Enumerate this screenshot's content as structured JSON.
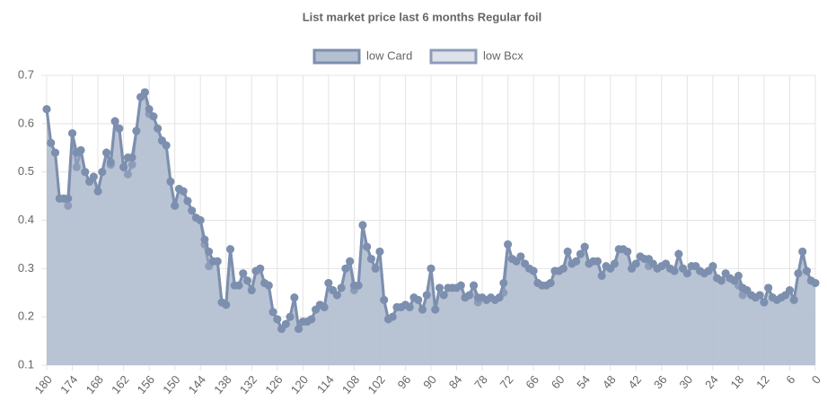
{
  "chart_data": {
    "type": "area",
    "title": "List market price last 6 months Regular foil",
    "x": [
      180,
      179,
      178,
      177,
      176,
      175,
      174,
      173,
      172,
      171,
      170,
      169,
      168,
      167,
      166,
      165,
      164,
      163,
      162,
      161,
      160,
      159,
      158,
      157,
      156,
      155,
      154,
      153,
      152,
      151,
      150,
      149,
      148,
      147,
      146,
      145,
      144,
      143,
      142,
      141,
      140,
      139,
      138,
      137,
      136,
      135,
      134,
      133,
      132,
      131,
      130,
      129,
      128,
      127,
      126,
      125,
      124,
      123,
      122,
      121,
      120,
      119,
      118,
      117,
      116,
      115,
      114,
      113,
      112,
      111,
      110,
      109,
      108,
      107,
      106,
      105,
      104,
      103,
      102,
      101,
      100,
      99,
      98,
      97,
      96,
      95,
      94,
      93,
      92,
      91,
      90,
      89,
      88,
      87,
      86,
      85,
      84,
      83,
      82,
      81,
      80,
      79,
      78,
      77,
      76,
      75,
      74,
      73,
      72,
      71,
      70,
      69,
      68,
      67,
      66,
      65,
      64,
      63,
      62,
      61,
      60,
      59,
      58,
      57,
      56,
      55,
      54,
      53,
      52,
      51,
      50,
      49,
      48,
      47,
      46,
      45,
      44,
      43,
      42,
      41,
      40,
      39,
      38,
      37,
      36,
      35,
      34,
      33,
      32,
      31,
      30,
      29,
      28,
      27,
      26,
      25,
      24,
      23,
      22,
      21,
      20,
      19,
      18,
      17,
      16,
      15,
      14,
      13,
      12,
      11,
      10,
      9,
      8,
      7,
      6,
      5,
      4,
      3,
      2,
      1,
      0
    ],
    "xlim": [
      180,
      0
    ],
    "xticks": [
      180,
      174,
      168,
      162,
      156,
      150,
      144,
      138,
      132,
      126,
      120,
      114,
      108,
      102,
      96,
      90,
      84,
      78,
      72,
      66,
      60,
      54,
      48,
      42,
      36,
      30,
      24,
      18,
      12,
      6,
      0
    ],
    "ylim": [
      0.1,
      0.7
    ],
    "yticks": [
      0.1,
      0.2,
      0.3,
      0.4,
      0.5,
      0.6,
      0.7
    ],
    "grid": true,
    "legend": "top",
    "series": [
      {
        "name": "low Card",
        "color": "#7d8fae",
        "fill": "#b4bfd1",
        "values": [
          0.63,
          0.56,
          0.54,
          0.445,
          0.445,
          0.445,
          0.58,
          0.54,
          0.545,
          0.5,
          0.48,
          0.49,
          0.46,
          0.5,
          0.54,
          0.52,
          0.605,
          0.59,
          0.51,
          0.53,
          0.53,
          0.585,
          0.655,
          0.665,
          0.63,
          0.615,
          0.59,
          0.565,
          0.555,
          0.48,
          0.43,
          0.465,
          0.46,
          0.44,
          0.42,
          0.405,
          0.4,
          0.36,
          0.335,
          0.315,
          0.315,
          0.23,
          0.225,
          0.34,
          0.265,
          0.265,
          0.29,
          0.275,
          0.255,
          0.295,
          0.3,
          0.27,
          0.265,
          0.21,
          0.195,
          0.175,
          0.185,
          0.2,
          0.24,
          0.175,
          0.19,
          0.19,
          0.195,
          0.215,
          0.225,
          0.22,
          0.27,
          0.255,
          0.245,
          0.26,
          0.3,
          0.315,
          0.265,
          0.265,
          0.39,
          0.345,
          0.32,
          0.3,
          0.335,
          0.235,
          0.195,
          0.2,
          0.22,
          0.22,
          0.225,
          0.22,
          0.24,
          0.235,
          0.215,
          0.245,
          0.3,
          0.215,
          0.26,
          0.245,
          0.26,
          0.26,
          0.26,
          0.265,
          0.24,
          0.245,
          0.265,
          0.24,
          0.24,
          0.235,
          0.24,
          0.235,
          0.24,
          0.27,
          0.35,
          0.32,
          0.315,
          0.325,
          0.31,
          0.3,
          0.295,
          0.27,
          0.265,
          0.265,
          0.27,
          0.295,
          0.295,
          0.3,
          0.335,
          0.31,
          0.315,
          0.33,
          0.345,
          0.31,
          0.315,
          0.315,
          0.285,
          0.305,
          0.3,
          0.31,
          0.34,
          0.34,
          0.335,
          0.3,
          0.31,
          0.325,
          0.32,
          0.32,
          0.31,
          0.3,
          0.305,
          0.31,
          0.3,
          0.295,
          0.33,
          0.3,
          0.29,
          0.305,
          0.305,
          0.295,
          0.29,
          0.295,
          0.305,
          0.28,
          0.275,
          0.29,
          0.28,
          0.275,
          0.285,
          0.26,
          0.255,
          0.245,
          0.24,
          0.245,
          0.23,
          0.26,
          0.24,
          0.235,
          0.24,
          0.245,
          0.255,
          0.235,
          0.29,
          0.335,
          0.295,
          0.275,
          0.27
        ]
      },
      {
        "name": "low Bcx",
        "color": "#8d9cb9",
        "fill": "#dde1ea",
        "values": [
          0.63,
          0.56,
          0.54,
          0.445,
          0.445,
          0.43,
          0.58,
          0.51,
          0.545,
          0.5,
          0.48,
          0.49,
          0.46,
          0.5,
          0.54,
          0.515,
          0.605,
          0.59,
          0.51,
          0.495,
          0.515,
          0.585,
          0.655,
          0.665,
          0.62,
          0.615,
          0.59,
          0.565,
          0.555,
          0.48,
          0.43,
          0.465,
          0.46,
          0.44,
          0.42,
          0.405,
          0.4,
          0.35,
          0.305,
          0.315,
          0.315,
          0.23,
          0.225,
          0.34,
          0.265,
          0.265,
          0.29,
          0.275,
          0.255,
          0.295,
          0.3,
          0.27,
          0.265,
          0.21,
          0.195,
          0.175,
          0.185,
          0.2,
          0.24,
          0.175,
          0.19,
          0.19,
          0.195,
          0.215,
          0.225,
          0.22,
          0.27,
          0.255,
          0.245,
          0.26,
          0.3,
          0.315,
          0.255,
          0.265,
          0.39,
          0.345,
          0.32,
          0.3,
          0.335,
          0.235,
          0.195,
          0.2,
          0.22,
          0.22,
          0.225,
          0.22,
          0.24,
          0.235,
          0.215,
          0.245,
          0.3,
          0.215,
          0.26,
          0.245,
          0.26,
          0.26,
          0.26,
          0.265,
          0.24,
          0.245,
          0.265,
          0.23,
          0.24,
          0.235,
          0.24,
          0.235,
          0.24,
          0.25,
          0.35,
          0.32,
          0.315,
          0.325,
          0.31,
          0.3,
          0.295,
          0.27,
          0.265,
          0.265,
          0.27,
          0.295,
          0.295,
          0.3,
          0.335,
          0.31,
          0.315,
          0.33,
          0.345,
          0.31,
          0.315,
          0.315,
          0.285,
          0.305,
          0.3,
          0.31,
          0.34,
          0.34,
          0.335,
          0.3,
          0.31,
          0.325,
          0.32,
          0.305,
          0.31,
          0.3,
          0.305,
          0.31,
          0.3,
          0.295,
          0.33,
          0.3,
          0.29,
          0.305,
          0.305,
          0.295,
          0.29,
          0.295,
          0.305,
          0.28,
          0.275,
          0.29,
          0.28,
          0.275,
          0.265,
          0.245,
          0.255,
          0.245,
          0.24,
          0.245,
          0.23,
          0.26,
          0.24,
          0.235,
          0.24,
          0.245,
          0.255,
          0.235,
          0.29,
          0.335,
          0.295,
          0.275,
          0.27
        ]
      }
    ]
  }
}
